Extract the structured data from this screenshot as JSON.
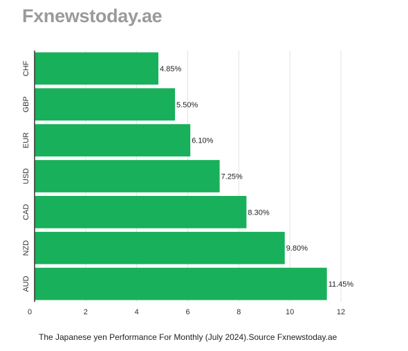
{
  "header": {
    "brand": "Fxnewstoday.ae"
  },
  "caption": "The Japanese yen Performance For Monthly (July 2024).Source Fxnewstoday.ae",
  "colors": {
    "bar": "#18b05a",
    "gridline": "#e2e2e2",
    "axis": "#333333",
    "brand": "#9a9a9a"
  },
  "chart_data": {
    "type": "bar",
    "orientation": "horizontal",
    "categories": [
      "CHF",
      "GBP",
      "EUR",
      "USD",
      "CAD",
      "NZD",
      "AUD"
    ],
    "values": [
      4.85,
      5.5,
      6.1,
      7.25,
      8.3,
      9.8,
      11.45
    ],
    "value_labels": [
      "4.85%",
      "5.50%",
      "6.10%",
      "7.25%",
      "8.30%",
      "9.80%",
      "11.45%"
    ],
    "x_ticks": [
      0,
      2,
      4,
      6,
      8,
      10,
      12
    ],
    "xlim": [
      0,
      12
    ],
    "grid": true,
    "title": "",
    "xlabel": "",
    "ylabel": ""
  }
}
